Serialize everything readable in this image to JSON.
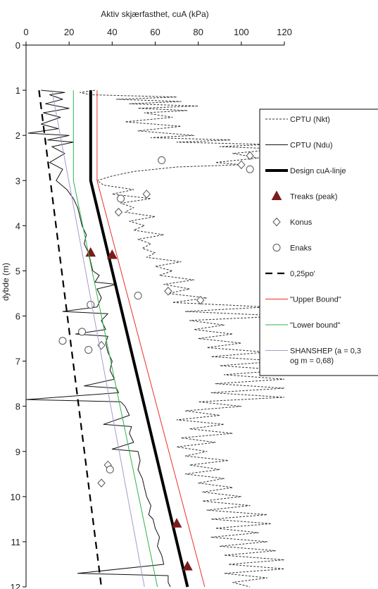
{
  "chart_data": {
    "type": "line",
    "orientation": "depth-profile",
    "xlabel": "Aktiv skjærfasthet, cuA (kPa)",
    "ylabel": "dybde (m)",
    "xlim": [
      0,
      120
    ],
    "ylim": [
      0,
      12
    ],
    "x_ticks": [
      0,
      20,
      40,
      60,
      80,
      100,
      120
    ],
    "y_ticks": [
      0,
      1,
      2,
      3,
      4,
      5,
      6,
      7,
      8,
      9,
      10,
      11,
      12
    ],
    "x_axis_position": "top",
    "y_inverted": true,
    "grid": false,
    "legend_position": "right",
    "series": [
      {
        "name": "CPTU (Nkt)",
        "kind": "line",
        "style": "dashed",
        "color": "#333333",
        "points": [
          [
            32,
            1.0
          ],
          [
            25,
            1.05
          ],
          [
            30,
            1.1
          ],
          [
            70,
            1.15
          ],
          [
            42,
            1.2
          ],
          [
            72,
            1.25
          ],
          [
            48,
            1.3
          ],
          [
            80,
            1.35
          ],
          [
            52,
            1.4
          ],
          [
            75,
            1.45
          ],
          [
            55,
            1.5
          ],
          [
            68,
            1.6
          ],
          [
            46,
            1.7
          ],
          [
            72,
            1.8
          ],
          [
            52,
            1.9
          ],
          [
            78,
            2.0
          ],
          [
            58,
            2.05
          ],
          [
            95,
            2.1
          ],
          [
            70,
            2.15
          ],
          [
            112,
            2.2
          ],
          [
            90,
            2.25
          ],
          [
            118,
            2.3
          ],
          [
            96,
            2.4
          ],
          [
            108,
            2.5
          ],
          [
            88,
            2.6
          ],
          [
            100,
            2.65
          ],
          [
            70,
            2.7
          ],
          [
            50,
            2.8
          ],
          [
            40,
            2.9
          ],
          [
            33,
            3.0
          ],
          [
            36,
            3.1
          ],
          [
            50,
            3.2
          ],
          [
            40,
            3.3
          ],
          [
            58,
            3.4
          ],
          [
            44,
            3.5
          ],
          [
            50,
            3.6
          ],
          [
            46,
            3.7
          ],
          [
            60,
            3.8
          ],
          [
            48,
            3.9
          ],
          [
            55,
            4.0
          ],
          [
            50,
            4.1
          ],
          [
            64,
            4.2
          ],
          [
            52,
            4.3
          ],
          [
            58,
            4.4
          ],
          [
            54,
            4.5
          ],
          [
            60,
            4.6
          ],
          [
            56,
            4.7
          ],
          [
            72,
            4.8
          ],
          [
            60,
            4.9
          ],
          [
            68,
            5.0
          ],
          [
            62,
            5.1
          ],
          [
            78,
            5.2
          ],
          [
            64,
            5.3
          ],
          [
            76,
            5.4
          ],
          [
            66,
            5.5
          ],
          [
            84,
            5.6
          ],
          [
            68,
            5.7
          ],
          [
            112,
            5.8
          ],
          [
            74,
            5.9
          ],
          [
            120,
            6.0
          ],
          [
            76,
            6.1
          ],
          [
            92,
            6.2
          ],
          [
            78,
            6.3
          ],
          [
            96,
            6.4
          ],
          [
            80,
            6.5
          ],
          [
            100,
            6.6
          ],
          [
            84,
            6.7
          ],
          [
            112,
            6.8
          ],
          [
            86,
            6.9
          ],
          [
            118,
            7.0
          ],
          [
            90,
            7.1
          ],
          [
            120,
            7.2
          ],
          [
            92,
            7.3
          ],
          [
            120,
            7.4
          ],
          [
            88,
            7.5
          ],
          [
            120,
            7.6
          ],
          [
            86,
            7.7
          ],
          [
            120,
            7.8
          ],
          [
            80,
            7.9
          ],
          [
            100,
            8.0
          ],
          [
            74,
            8.1
          ],
          [
            90,
            8.2
          ],
          [
            70,
            8.3
          ],
          [
            92,
            8.4
          ],
          [
            76,
            8.5
          ],
          [
            96,
            8.6
          ],
          [
            72,
            8.7
          ],
          [
            88,
            8.8
          ],
          [
            70,
            8.9
          ],
          [
            84,
            9.0
          ],
          [
            74,
            9.1
          ],
          [
            94,
            9.2
          ],
          [
            76,
            9.3
          ],
          [
            90,
            9.4
          ],
          [
            74,
            9.5
          ],
          [
            92,
            9.6
          ],
          [
            80,
            9.7
          ],
          [
            96,
            9.8
          ],
          [
            82,
            9.9
          ],
          [
            100,
            10.0
          ],
          [
            82,
            10.1
          ],
          [
            104,
            10.2
          ],
          [
            84,
            10.3
          ],
          [
            112,
            10.4
          ],
          [
            86,
            10.5
          ],
          [
            114,
            10.6
          ],
          [
            88,
            10.7
          ],
          [
            108,
            10.8
          ],
          [
            86,
            10.9
          ],
          [
            112,
            11.0
          ],
          [
            90,
            11.1
          ],
          [
            116,
            11.2
          ],
          [
            92,
            11.3
          ],
          [
            120,
            11.4
          ],
          [
            94,
            11.5
          ],
          [
            120,
            11.6
          ],
          [
            92,
            11.7
          ],
          [
            112,
            11.8
          ],
          [
            96,
            11.9
          ],
          [
            104,
            12.0
          ]
        ]
      },
      {
        "name": "CPTU (Ndu)",
        "kind": "line",
        "style": "solid",
        "color": "#111111",
        "points": [
          [
            7,
            1.0
          ],
          [
            18,
            1.05
          ],
          [
            11,
            1.1
          ],
          [
            17,
            1.2
          ],
          [
            9,
            1.3
          ],
          [
            20,
            1.4
          ],
          [
            8,
            1.5
          ],
          [
            16,
            1.6
          ],
          [
            7,
            1.75
          ],
          [
            15,
            1.85
          ],
          [
            1,
            1.95
          ],
          [
            20,
            2.0
          ],
          [
            10,
            2.1
          ],
          [
            22,
            2.15
          ],
          [
            12,
            2.25
          ],
          [
            18,
            2.4
          ],
          [
            11,
            2.6
          ],
          [
            17,
            2.75
          ],
          [
            14,
            3.0
          ],
          [
            19,
            3.2
          ],
          [
            22,
            3.4
          ],
          [
            24,
            3.6
          ],
          [
            25,
            3.8
          ],
          [
            26,
            4.0
          ],
          [
            28,
            4.2
          ],
          [
            27,
            4.4
          ],
          [
            29,
            4.6
          ],
          [
            30,
            4.8
          ],
          [
            31,
            5.0
          ],
          [
            34,
            5.1
          ],
          [
            32,
            5.25
          ],
          [
            42,
            5.3
          ],
          [
            33,
            5.4
          ],
          [
            35,
            5.6
          ],
          [
            33,
            5.8
          ],
          [
            17,
            5.9
          ],
          [
            38,
            5.95
          ],
          [
            35,
            6.1
          ],
          [
            37,
            6.3
          ],
          [
            23,
            6.4
          ],
          [
            38,
            6.45
          ],
          [
            37,
            6.6
          ],
          [
            38,
            6.8
          ],
          [
            40,
            7.0
          ],
          [
            39,
            7.2
          ],
          [
            41,
            7.4
          ],
          [
            27,
            7.55
          ],
          [
            42,
            7.6
          ],
          [
            43,
            7.7
          ],
          [
            0,
            7.85
          ],
          [
            44,
            7.9
          ],
          [
            46,
            8.0
          ],
          [
            48,
            8.2
          ],
          [
            36,
            8.4
          ],
          [
            49,
            8.45
          ],
          [
            48,
            8.6
          ],
          [
            50,
            8.8
          ],
          [
            40,
            8.95
          ],
          [
            52,
            9.0
          ],
          [
            53,
            9.2
          ],
          [
            52,
            9.4
          ],
          [
            54,
            9.6
          ],
          [
            55,
            9.8
          ],
          [
            56,
            10.0
          ],
          [
            58,
            10.2
          ],
          [
            57,
            10.4
          ],
          [
            59,
            10.5
          ],
          [
            60,
            10.7
          ],
          [
            62,
            10.9
          ],
          [
            61,
            11.1
          ],
          [
            63,
            11.3
          ],
          [
            64,
            11.5
          ],
          [
            24,
            11.7
          ],
          [
            66,
            11.75
          ],
          [
            66,
            11.9
          ],
          [
            67,
            12.0
          ]
        ]
      },
      {
        "name": "Design cuA-linje",
        "kind": "line",
        "style": "solid-thick",
        "color": "#000000",
        "points": [
          [
            30,
            1.0
          ],
          [
            30,
            3.0
          ],
          [
            75,
            12.0
          ]
        ]
      },
      {
        "name": "Treaks (peak)",
        "kind": "marker",
        "marker": "triangle",
        "color": "#7a1c1c",
        "points": [
          [
            30,
            4.6
          ],
          [
            40,
            4.65
          ],
          [
            70,
            10.6
          ],
          [
            75,
            11.55
          ]
        ]
      },
      {
        "name": "Konus",
        "kind": "marker",
        "marker": "diamond",
        "color": "#555555",
        "points": [
          [
            104,
            2.45
          ],
          [
            100,
            2.65
          ],
          [
            56,
            3.3
          ],
          [
            43,
            3.7
          ],
          [
            66,
            5.45
          ],
          [
            81,
            5.65
          ],
          [
            35,
            6.65
          ],
          [
            38,
            9.3
          ],
          [
            35,
            9.7
          ]
        ]
      },
      {
        "name": "Enaks",
        "kind": "marker",
        "marker": "circle",
        "color": "#555555",
        "points": [
          [
            63,
            2.55
          ],
          [
            104,
            2.75
          ],
          [
            44,
            3.4
          ],
          [
            52,
            5.55
          ],
          [
            30,
            5.75
          ],
          [
            26,
            6.35
          ],
          [
            17,
            6.55
          ],
          [
            29,
            6.75
          ],
          [
            39,
            9.4
          ]
        ]
      },
      {
        "name": "0,25po'",
        "kind": "line",
        "style": "long-dashed",
        "color": "#000000",
        "points": [
          [
            6,
            1.0
          ],
          [
            35,
            12.0
          ]
        ]
      },
      {
        "name": "\"Upper Bound\"",
        "kind": "line",
        "style": "solid",
        "color": "#e8302a",
        "points": [
          [
            33,
            1.0
          ],
          [
            33,
            3.0
          ],
          [
            83,
            12.0
          ]
        ]
      },
      {
        "name": "\"Lower bound\"",
        "kind": "line",
        "style": "solid",
        "color": "#2eb24e",
        "points": [
          [
            22,
            1.0
          ],
          [
            22,
            3.0
          ],
          [
            61,
            12.0
          ]
        ]
      },
      {
        "name": "SHANSHEP (a = 0,3 og m = 0,68)",
        "name_lines": [
          "SHANSHEP (a = 0,3",
          "og m = 0,68)"
        ],
        "kind": "line",
        "style": "solid",
        "color": "#a99acb",
        "points": [
          [
            12,
            1.0
          ],
          [
            55,
            12.0
          ]
        ]
      }
    ]
  }
}
